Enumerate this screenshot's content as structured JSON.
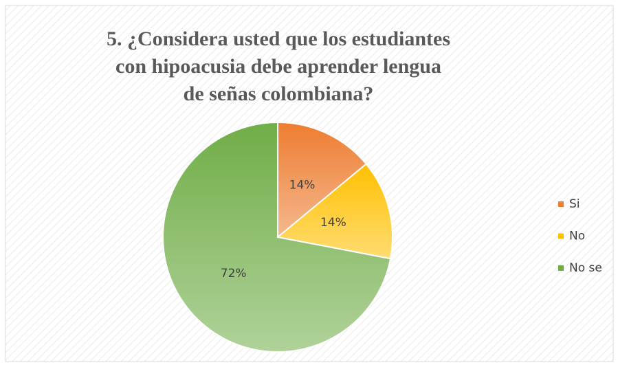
{
  "chart_data": {
    "type": "pie",
    "title": "5. ¿Considera usted que los estudiantes con hipoacusia debe aprender lengua de señas colombiana?",
    "categories": [
      "Si",
      "No",
      "No se"
    ],
    "values": [
      14,
      14,
      72
    ],
    "value_labels": [
      "14%",
      "14%",
      "72%"
    ],
    "colors": [
      "#ed7d31",
      "#ffc000",
      "#70ad47"
    ],
    "legend": "right"
  }
}
